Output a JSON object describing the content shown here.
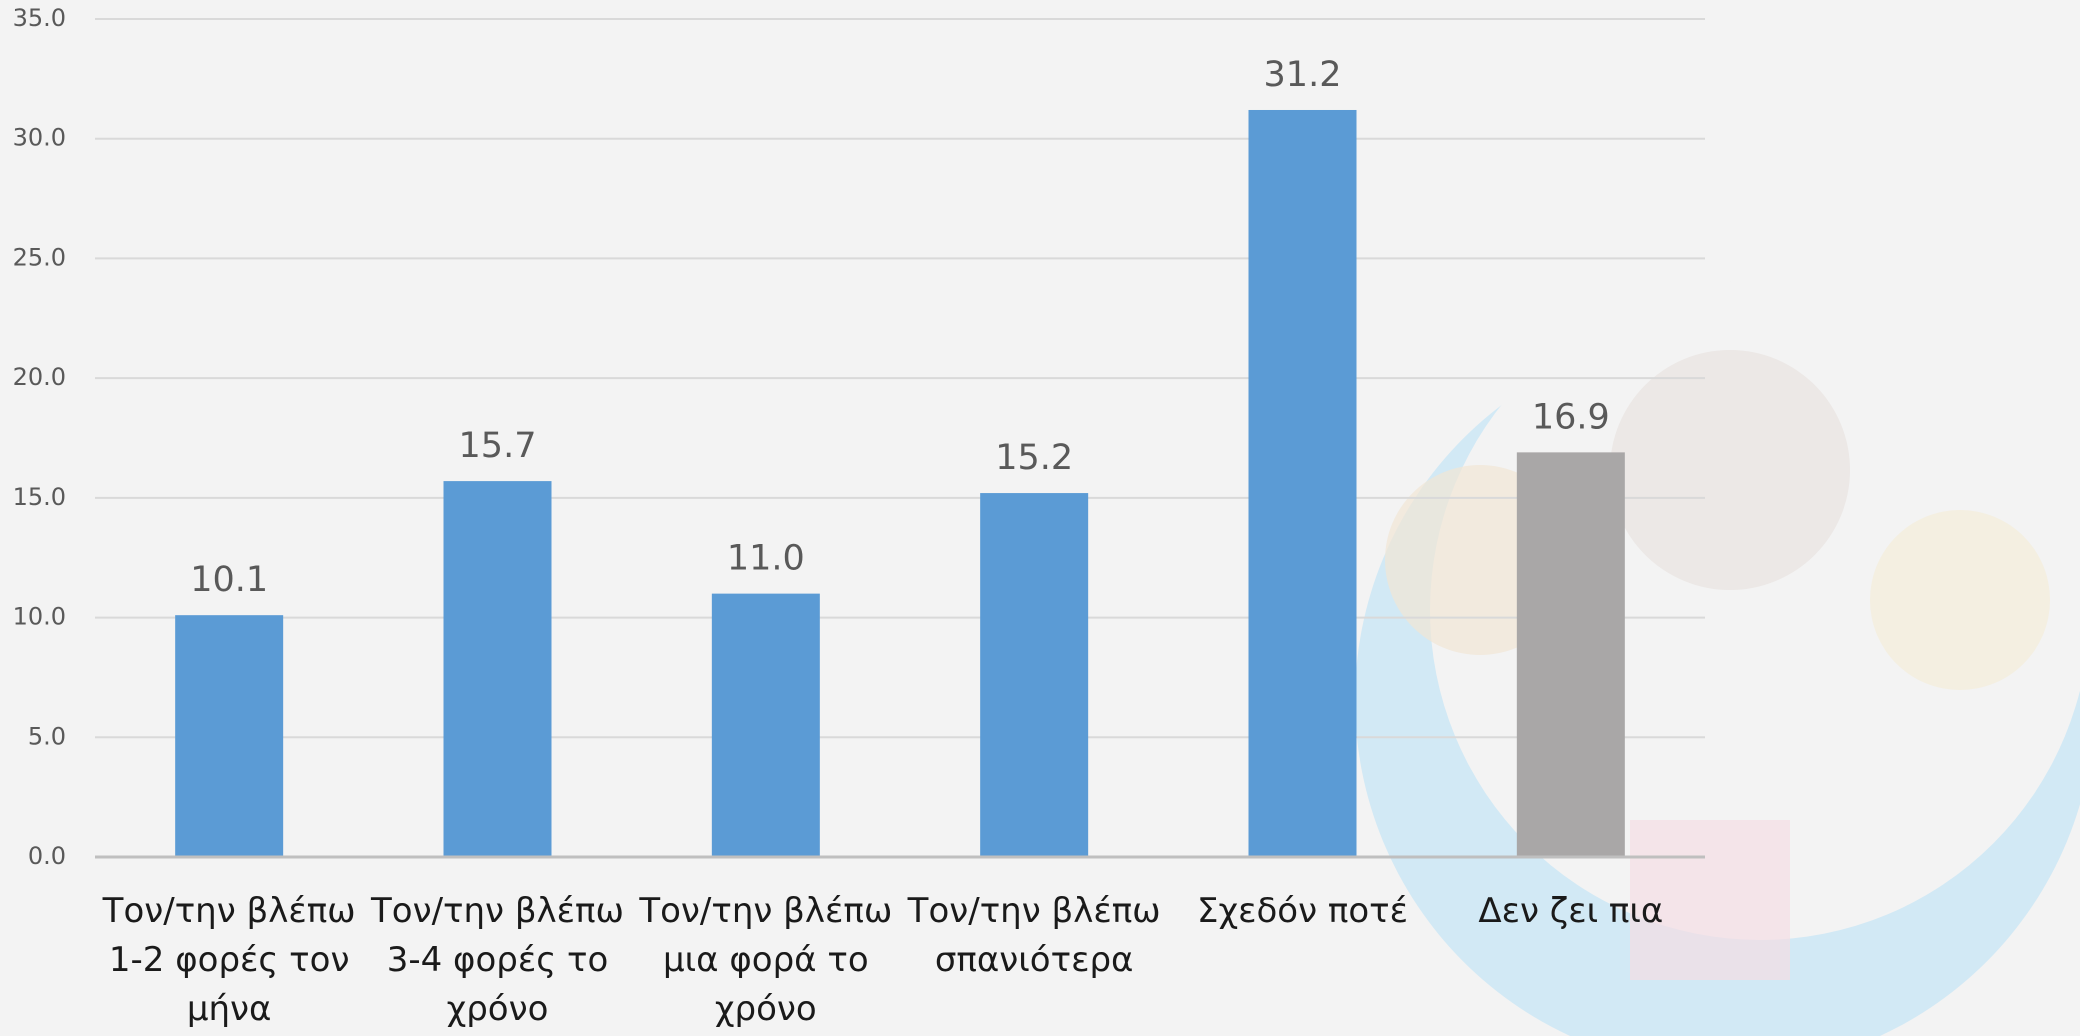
{
  "chart_data": {
    "type": "bar",
    "categories": [
      "Τον/την βλέπω 1-2 φορές τον μήνα",
      "Τον/την βλέπω 3-4 φορές το χρόνο",
      "Τον/την βλέπω μια φορά το χρόνο",
      "Τον/την βλέπω σπανιότερα",
      "Σχεδόν ποτέ",
      "Δεν ζει πια"
    ],
    "values": [
      10.1,
      15.7,
      11.0,
      15.2,
      31.2,
      16.9
    ],
    "value_labels": [
      "10.1",
      "15.7",
      "11.0",
      "15.2",
      "31.2",
      "16.9"
    ],
    "colors": [
      "#5b9bd5",
      "#5b9bd5",
      "#5b9bd5",
      "#5b9bd5",
      "#5b9bd5",
      "#a9a7a7"
    ],
    "ylim": [
      0,
      35
    ],
    "yticks": [
      {
        "value": 0,
        "label": "0.0"
      },
      {
        "value": 5,
        "label": "5.0"
      },
      {
        "value": 10,
        "label": "10.0"
      },
      {
        "value": 15,
        "label": "15.0"
      },
      {
        "value": 20,
        "label": "20.0"
      },
      {
        "value": 25,
        "label": "25.0"
      },
      {
        "value": 30,
        "label": "30.0"
      },
      {
        "value": 35,
        "label": "35.0"
      }
    ],
    "grid": true
  }
}
